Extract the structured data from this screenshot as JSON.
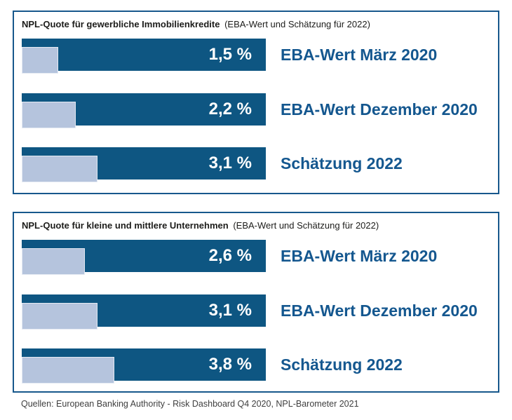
{
  "colors": {
    "bar_dark": "#0e5682",
    "bar_light": "#b5c4dd",
    "panel_border": "#17588c",
    "category_label": "#14578f",
    "value_label": "#ffffff",
    "header_text": "#1c1c1a",
    "footer_text": "#3f3f3f"
  },
  "footer": {
    "source_line": "Quellen: European Banking Authority - Risk Dashboard Q4 2020, NPL-Barometer 2021"
  },
  "chart_data": [
    {
      "type": "bar",
      "orientation": "horizontal",
      "title": "NPL-Quote für gewerbliche Immobilienkredite (EBA-Wert und Schätzung für 2022)",
      "title_bold": "NPL-Quote für gewerbliche Immobilienkredite",
      "title_suffix": "(EBA-Wert und Schätzung für 2022)",
      "categories": [
        "EBA-Wert März 2020",
        "EBA-Wert Dezember 2020",
        "Schätzung 2022"
      ],
      "values": [
        1.5,
        2.2,
        3.1
      ],
      "value_labels": [
        "1,5 %",
        "2,2 %",
        "3,1 %"
      ],
      "unit": "%",
      "xlim": [
        0,
        10
      ],
      "grid": false,
      "legend": "none"
    },
    {
      "type": "bar",
      "orientation": "horizontal",
      "title": "NPL-Quote für kleine und mittlere Unternehmen (EBA-Wert und Schätzung für 2022)",
      "title_bold": "NPL-Quote für kleine und mittlere Unternehmen",
      "title_suffix": "(EBA-Wert und Schätzung für 2022)",
      "categories": [
        "EBA-Wert März 2020",
        "EBA-Wert Dezember 2020",
        "Schätzung 2022"
      ],
      "values": [
        2.6,
        3.1,
        3.8
      ],
      "value_labels": [
        "2,6 %",
        "3,1 %",
        "3,8 %"
      ],
      "unit": "%",
      "xlim": [
        0,
        10
      ],
      "grid": false,
      "legend": "none"
    }
  ]
}
